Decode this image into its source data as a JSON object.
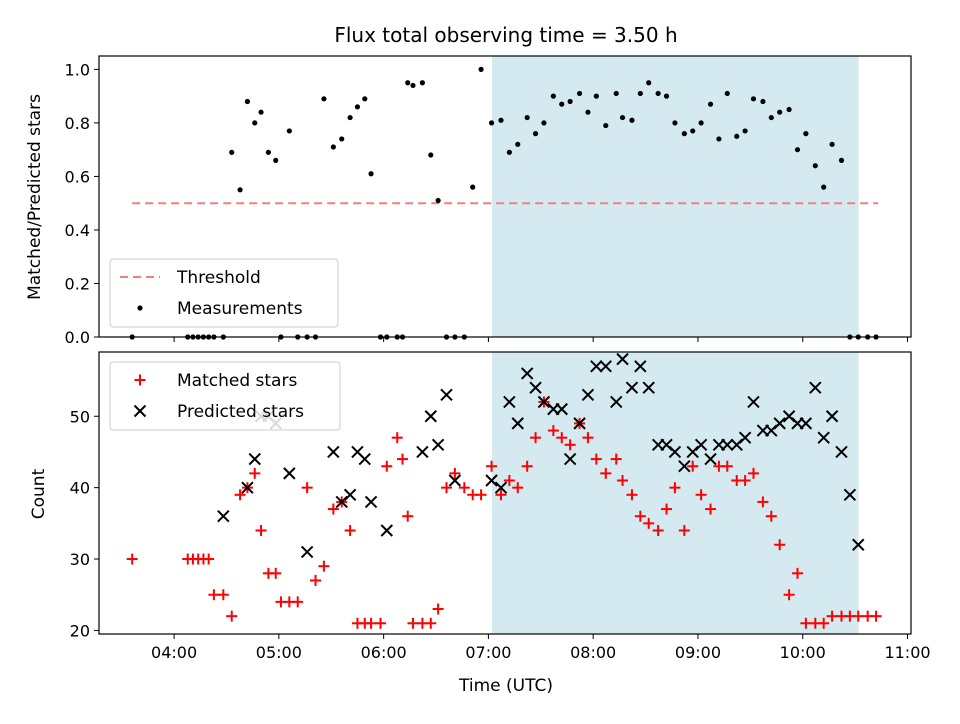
{
  "chart_data": {
    "type": "scatter",
    "title": "Flux total observing time = 3.50 h",
    "xlabel": "Time (UTC)",
    "x_unit": "hours UTC",
    "xlim": [
      "03:17",
      "11:02"
    ],
    "x_ticks": [
      "04:00",
      "05:00",
      "06:00",
      "07:00",
      "08:00",
      "09:00",
      "10:00",
      "11:00"
    ],
    "shaded_region": {
      "start": "07:02",
      "end": "10:32",
      "color": "#d4eaf0"
    },
    "grid": false,
    "panels": [
      {
        "ylabel": "Matched/Predicted stars",
        "ylim": [
          0,
          1.05
        ],
        "y_ticks": [
          "0.0",
          "0.2",
          "0.4",
          "0.6",
          "0.8",
          "1.0"
        ],
        "legend": {
          "position": "lower-left",
          "entries": [
            "Threshold",
            "Measurements"
          ]
        },
        "series": [
          {
            "name": "Threshold",
            "kind": "dashed-line",
            "color": "#f08080",
            "x": [
              3.6,
              10.72
            ],
            "y": [
              0.5,
              0.5
            ]
          },
          {
            "name": "Measurements",
            "kind": "dot",
            "color": "#000000",
            "x": [
              3.6,
              4.13,
              4.18,
              4.23,
              4.28,
              4.33,
              4.38,
              4.47,
              4.55,
              4.63,
              4.7,
              4.77,
              4.83,
              4.9,
              4.97,
              5.02,
              5.1,
              5.18,
              5.27,
              5.35,
              5.43,
              5.52,
              5.6,
              5.68,
              5.75,
              5.82,
              5.88,
              5.97,
              6.03,
              6.13,
              6.18,
              6.23,
              6.28,
              6.37,
              6.45,
              6.52,
              6.6,
              6.68,
              6.77,
              6.85,
              6.93,
              7.03,
              7.12,
              7.2,
              7.28,
              7.37,
              7.45,
              7.53,
              7.62,
              7.7,
              7.78,
              7.87,
              7.95,
              8.03,
              8.12,
              8.22,
              8.28,
              8.37,
              8.45,
              8.53,
              8.62,
              8.7,
              8.78,
              8.87,
              8.95,
              9.03,
              9.12,
              9.2,
              9.28,
              9.37,
              9.45,
              9.53,
              9.62,
              9.7,
              9.78,
              9.87,
              9.95,
              10.03,
              10.12,
              10.2,
              10.28,
              10.37,
              10.45,
              10.53,
              10.62,
              10.7
            ],
            "y": [
              0,
              0,
              0,
              0,
              0,
              0,
              0,
              0,
              0.69,
              0.55,
              0.88,
              0.8,
              0.84,
              0.69,
              0.66,
              0,
              0.77,
              0,
              0,
              0,
              0.89,
              0.71,
              0.74,
              0.82,
              0.86,
              0.89,
              0.61,
              0,
              0,
              0,
              0,
              0.95,
              0.94,
              0.95,
              0.68,
              0.51,
              0,
              0,
              0,
              0.56,
              1.0,
              0.8,
              0.81,
              0.69,
              0.72,
              0.82,
              0.76,
              0.8,
              0.9,
              0.87,
              0.88,
              0.91,
              0.84,
              0.9,
              0.79,
              0.91,
              0.82,
              0.81,
              0.91,
              0.95,
              0.91,
              0.9,
              0.8,
              0.76,
              0.77,
              0.8,
              0.87,
              0.74,
              0.91,
              0.75,
              0.77,
              0.89,
              0.88,
              0.82,
              0.84,
              0.85,
              0.7,
              0.76,
              0.64,
              0.56,
              0.72,
              0.66,
              0,
              0,
              0,
              0
            ]
          }
        ]
      },
      {
        "ylabel": "Count",
        "ylim": [
          19.5,
          59
        ],
        "y_ticks": [
          "20",
          "30",
          "40",
          "50"
        ],
        "legend": {
          "position": "upper-left",
          "entries": [
            "Matched stars",
            "Predicted stars"
          ]
        },
        "series": [
          {
            "name": "Matched stars",
            "kind": "plus",
            "color": "#ff0000",
            "x": [
              3.6,
              4.13,
              4.18,
              4.23,
              4.28,
              4.33,
              4.38,
              4.47,
              4.55,
              4.63,
              4.7,
              4.77,
              4.83,
              4.9,
              4.97,
              5.02,
              5.1,
              5.18,
              5.27,
              5.35,
              5.43,
              5.52,
              5.6,
              5.68,
              5.75,
              5.82,
              5.88,
              5.97,
              6.03,
              6.13,
              6.18,
              6.23,
              6.28,
              6.37,
              6.45,
              6.52,
              6.6,
              6.68,
              6.77,
              6.85,
              6.93,
              7.03,
              7.12,
              7.2,
              7.28,
              7.37,
              7.45,
              7.53,
              7.62,
              7.7,
              7.78,
              7.87,
              7.95,
              8.03,
              8.12,
              8.22,
              8.28,
              8.37,
              8.45,
              8.53,
              8.62,
              8.7,
              8.78,
              8.87,
              8.95,
              9.03,
              9.12,
              9.2,
              9.28,
              9.37,
              9.45,
              9.53,
              9.62,
              9.7,
              9.78,
              9.87,
              9.95,
              10.03,
              10.12,
              10.2,
              10.28,
              10.37,
              10.45,
              10.53,
              10.62,
              10.7
            ],
            "y": [
              30,
              30,
              30,
              30,
              30,
              30,
              25,
              25,
              22,
              39,
              40,
              42,
              34,
              28,
              28,
              24,
              24,
              24,
              40,
              27,
              29,
              37,
              38,
              34,
              21,
              21,
              21,
              21,
              43,
              47,
              44,
              36,
              21,
              21,
              21,
              23,
              40,
              42,
              40,
              39,
              39,
              43,
              39,
              41,
              40,
              43,
              47,
              52,
              48,
              47,
              46,
              49,
              47,
              44,
              42,
              44,
              41,
              39,
              36,
              35,
              34,
              37,
              40,
              34,
              43,
              39,
              37,
              43,
              43,
              41,
              41,
              42,
              38,
              36,
              32,
              25,
              28,
              21,
              21,
              21,
              22,
              22,
              22,
              22,
              22,
              22
            ]
          },
          {
            "name": "Predicted stars",
            "kind": "x",
            "color": "#000000",
            "x": [
              4.47,
              4.7,
              4.77,
              4.83,
              4.9,
              4.97,
              5.1,
              5.27,
              5.52,
              5.6,
              5.68,
              5.75,
              5.82,
              5.88,
              6.03,
              6.37,
              6.45,
              6.52,
              6.6,
              6.68,
              7.03,
              7.12,
              7.2,
              7.28,
              7.37,
              7.45,
              7.53,
              7.62,
              7.7,
              7.78,
              7.87,
              7.95,
              8.03,
              8.12,
              8.22,
              8.28,
              8.37,
              8.45,
              8.53,
              8.62,
              8.7,
              8.78,
              8.87,
              8.95,
              9.03,
              9.12,
              9.2,
              9.28,
              9.37,
              9.45,
              9.53,
              9.62,
              9.7,
              9.78,
              9.87,
              9.95,
              10.03,
              10.12,
              10.2,
              10.28,
              10.37,
              10.45,
              10.53
            ],
            "y": [
              36,
              40,
              44,
              50,
              50,
              49,
              42,
              31,
              45,
              38,
              39,
              45,
              44,
              38,
              34,
              45,
              50,
              46,
              53,
              41,
              41,
              40,
              52,
              49,
              56,
              54,
              52,
              51,
              51,
              44,
              49,
              53,
              57,
              57,
              52,
              58,
              54,
              57,
              54,
              46,
              46,
              45,
              43,
              45,
              46,
              44,
              46,
              46,
              46,
              47,
              52,
              48,
              48,
              49,
              50,
              49,
              49,
              54,
              47,
              50,
              45,
              39,
              32
            ]
          }
        ]
      }
    ]
  }
}
